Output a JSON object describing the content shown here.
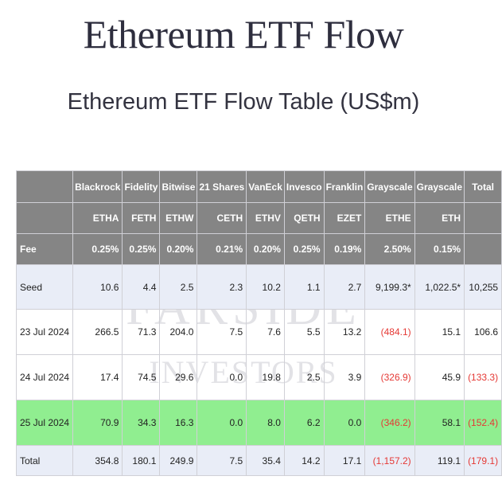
{
  "header": {
    "title": "Ethereum ETF Flow",
    "subtitle": "Ethereum ETF Flow Table (US$m)"
  },
  "watermark": {
    "line1": "FARSIDE",
    "line2": "INVESTORS"
  },
  "table": {
    "issuers": [
      "Blackrock",
      "Fidelity",
      "Bitwise",
      "21 Shares",
      "VanEck",
      "Invesco",
      "Franklin",
      "Grayscale",
      "Grayscale",
      "Total"
    ],
    "tickers": [
      "ETHA",
      "FETH",
      "ETHW",
      "CETH",
      "ETHV",
      "QETH",
      "EZET",
      "ETHE",
      "ETH",
      ""
    ],
    "fee": {
      "label": "Fee",
      "values": [
        "0.25%",
        "0.25%",
        "0.20%",
        "0.21%",
        "0.20%",
        "0.25%",
        "0.19%",
        "2.50%",
        "0.15%",
        ""
      ]
    },
    "rows": [
      {
        "label": "Seed",
        "values": [
          "10.6",
          "4.4",
          "2.5",
          "2.3",
          "10.2",
          "1.1",
          "2.7",
          "9,199.3*",
          "1,022.5*",
          "10,255"
        ]
      },
      {
        "label": "23 Jul 2024",
        "values": [
          "266.5",
          "71.3",
          "204.0",
          "7.5",
          "7.6",
          "5.5",
          "13.2",
          "(484.1)",
          "15.1",
          "106.6"
        ]
      },
      {
        "label": "24 Jul 2024",
        "values": [
          "17.4",
          "74.5",
          "29.6",
          "0.0",
          "19.8",
          "2.5",
          "3.9",
          "(326.9)",
          "45.9",
          "(133.3)"
        ]
      },
      {
        "label": "25 Jul 2024",
        "values": [
          "70.9",
          "34.3",
          "16.3",
          "0.0",
          "8.0",
          "6.2",
          "0.0",
          "(346.2)",
          "58.1",
          "(152.4)"
        ]
      },
      {
        "label": "Total",
        "values": [
          "354.8",
          "180.1",
          "249.9",
          "7.5",
          "35.4",
          "14.2",
          "17.1",
          "(1,157.2)",
          "119.1",
          "(179.1)"
        ]
      }
    ]
  },
  "colors": {
    "header_bg": "#858585",
    "row_band": "#e9edf7",
    "highlight_row": "#90ee90",
    "negative_text": "#e53935"
  }
}
